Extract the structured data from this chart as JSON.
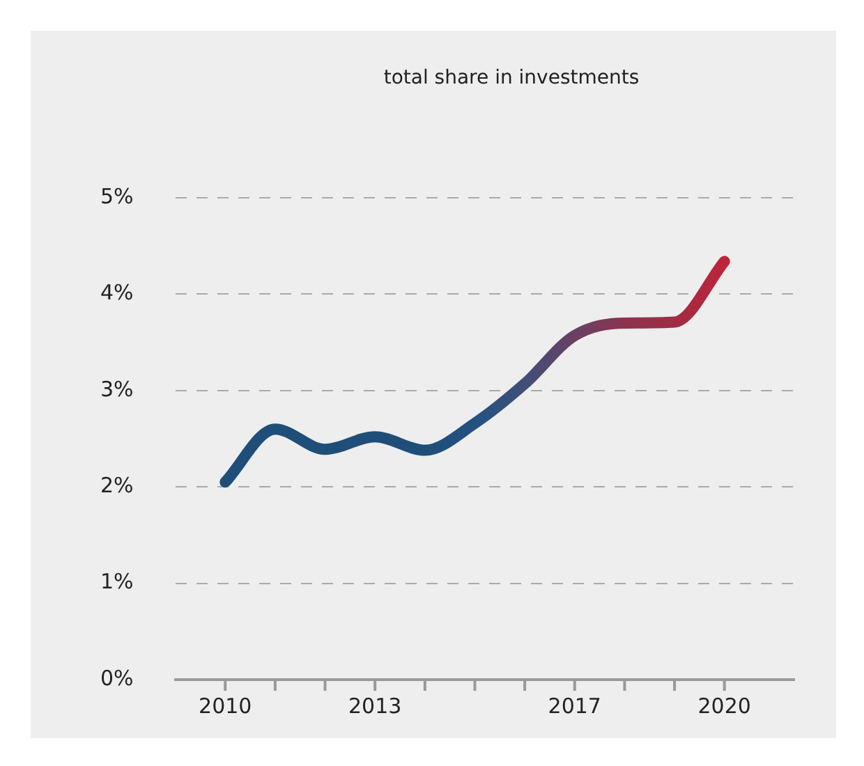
{
  "chart_data": {
    "type": "line",
    "title": "total share in investments",
    "x": [
      2010,
      2011,
      2012,
      2013,
      2014,
      2015,
      2016,
      2017,
      2018,
      2019,
      2020
    ],
    "series": [
      {
        "values": [
          2.05,
          2.6,
          2.39,
          2.52,
          2.38,
          2.66,
          3.07,
          3.57,
          3.7,
          3.71,
          4.34
        ],
        "colors": [
          "#1f4e79",
          "#1f4e79",
          "#1f4e79",
          "#1f4e79",
          "#1f4e79",
          "#235282",
          "#3f4f78",
          "#6a4062",
          "#8a3450",
          "#a02c42",
          "#c0233a"
        ]
      }
    ],
    "xlim": [
      2009,
      2021.4
    ],
    "xticks": [
      {
        "value": 2010,
        "label": "2010"
      },
      {
        "value": 2011,
        "label": null
      },
      {
        "value": 2012,
        "label": null
      },
      {
        "value": 2013,
        "label": "2013"
      },
      {
        "value": 2014,
        "label": null
      },
      {
        "value": 2015,
        "label": null
      },
      {
        "value": 2016,
        "label": null
      },
      {
        "value": 2017,
        "label": "2017"
      },
      {
        "value": 2018,
        "label": null
      },
      {
        "value": 2019,
        "label": null
      },
      {
        "value": 2020,
        "label": "2020"
      }
    ],
    "ylim": [
      0,
      5
    ],
    "yticks": [
      {
        "value": 0,
        "label": "0%"
      },
      {
        "value": 1,
        "label": "1%"
      },
      {
        "value": 2,
        "label": "2%"
      },
      {
        "value": 3,
        "label": "3%"
      },
      {
        "value": 4,
        "label": "4%"
      },
      {
        "value": 5,
        "label": "5%"
      }
    ],
    "grid": "y",
    "line_style": "solid",
    "marker": "none",
    "legend": false
  }
}
